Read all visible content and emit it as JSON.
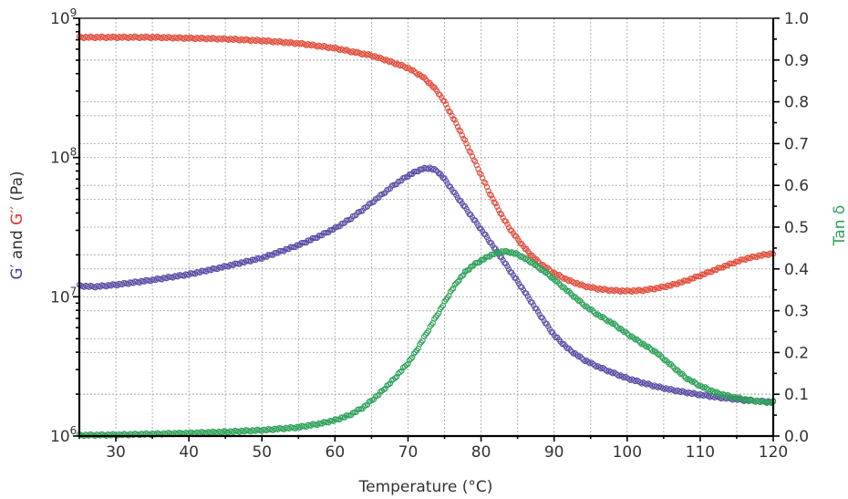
{
  "chart_data": {
    "type": "scatter",
    "title": "",
    "xlabel": "Temperature (°C)",
    "ylabel_left_parts": [
      {
        "text": "G′",
        "color": "#3a3a9a"
      },
      {
        "text": " and ",
        "color": "#333333"
      },
      {
        "text": "G′′",
        "color": "#e0302a"
      },
      {
        "text": " (Pa)",
        "color": "#333333"
      }
    ],
    "ylabel_right": "Tan δ",
    "xlim": [
      25,
      120
    ],
    "ylim_left": [
      1000000,
      1000000000
    ],
    "y_left_scale": "log",
    "ylim_right": [
      0,
      1
    ],
    "grid": true,
    "x_ticks": [
      "30",
      "40",
      "50",
      "60",
      "70",
      "80",
      "90",
      "100",
      "110",
      "120"
    ],
    "y_left_tick_labels": [
      {
        "base": "10",
        "exp": "6"
      },
      {
        "base": "10",
        "exp": "7"
      },
      {
        "base": "10",
        "exp": "8"
      },
      {
        "base": "10",
        "exp": "9"
      }
    ],
    "y_right_ticks": [
      "0.0",
      "0.1",
      "0.2",
      "0.3",
      "0.4",
      "0.5",
      "0.6",
      "0.7",
      "0.8",
      "0.9",
      "1.0"
    ],
    "series": [
      {
        "axis": "left",
        "color": "#e0503f",
        "x": [
          25,
          30,
          35,
          40,
          45,
          50,
          55,
          60,
          62,
          65,
          67,
          70,
          72,
          73,
          74,
          75,
          76,
          77,
          78,
          79,
          80,
          81,
          82,
          83,
          84,
          85,
          86,
          87,
          88,
          90,
          92,
          94,
          96,
          98,
          100,
          102,
          104,
          106,
          108,
          110,
          112,
          114,
          116,
          118,
          120
        ],
        "y": [
          730000000,
          730000000,
          730000000,
          720000000,
          710000000,
          690000000,
          660000000,
          610000000,
          580000000,
          540000000,
          500000000,
          440000000,
          380000000,
          340000000,
          300000000,
          250000000,
          200000000,
          160000000,
          125000000,
          97000000,
          75000000,
          58000000,
          46000000,
          37000000,
          30500000,
          26000000,
          22300000,
          19600000,
          17500000,
          14800000,
          13100000,
          12000000,
          11400000,
          11100000,
          11000000,
          11100000,
          11500000,
          12100000,
          13000000,
          14200000,
          15600000,
          17100000,
          18600000,
          19700000,
          20500000
        ]
      },
      {
        "axis": "left",
        "color": "#5a4fa5",
        "x": [
          25,
          27,
          30,
          35,
          40,
          45,
          50,
          55,
          58,
          60,
          62,
          64,
          66,
          68,
          70,
          71,
          72,
          73,
          74,
          75,
          76,
          77,
          78,
          79,
          80,
          81,
          82,
          83,
          84,
          85,
          86,
          87,
          88,
          89,
          90,
          92,
          94,
          96,
          98,
          100,
          102,
          104,
          106,
          108,
          110,
          112,
          114,
          116,
          118,
          120
        ],
        "y": [
          12000000,
          11800000,
          12200000,
          13200000,
          14500000,
          16500000,
          19000000,
          23500000,
          27500000,
          31000000,
          36000000,
          43000000,
          52000000,
          63000000,
          74000000,
          79000000,
          83000000,
          84000000,
          80000000,
          70000000,
          59000000,
          50000000,
          42500000,
          36000000,
          30500000,
          25800000,
          21800000,
          18300000,
          15300000,
          12900000,
          10800000,
          9000000,
          7500000,
          6300000,
          5300000,
          4200000,
          3550000,
          3150000,
          2850000,
          2600000,
          2420000,
          2270000,
          2150000,
          2060000,
          1980000,
          1910000,
          1860000,
          1810000,
          1780000,
          1760000
        ]
      },
      {
        "axis": "right",
        "color": "#2ea15a",
        "x": [
          25,
          30,
          35,
          40,
          45,
          50,
          55,
          58,
          60,
          62,
          64,
          66,
          68,
          70,
          71,
          72,
          73,
          74,
          75,
          76,
          77,
          78,
          79,
          80,
          81,
          82,
          83,
          84,
          85,
          86,
          87,
          88,
          89,
          90,
          92,
          94,
          96,
          98,
          100,
          102,
          104,
          106,
          108,
          110,
          112,
          114,
          116,
          118,
          120
        ],
        "y": [
          0.002,
          0.003,
          0.005,
          0.007,
          0.01,
          0.014,
          0.021,
          0.03,
          0.038,
          0.05,
          0.07,
          0.1,
          0.135,
          0.175,
          0.2,
          0.23,
          0.26,
          0.29,
          0.32,
          0.35,
          0.375,
          0.395,
          0.41,
          0.42,
          0.43,
          0.438,
          0.442,
          0.44,
          0.435,
          0.425,
          0.415,
          0.402,
          0.39,
          0.375,
          0.345,
          0.315,
          0.29,
          0.27,
          0.245,
          0.222,
          0.2,
          0.17,
          0.14,
          0.12,
          0.105,
          0.095,
          0.088,
          0.083,
          0.08
        ]
      }
    ]
  }
}
